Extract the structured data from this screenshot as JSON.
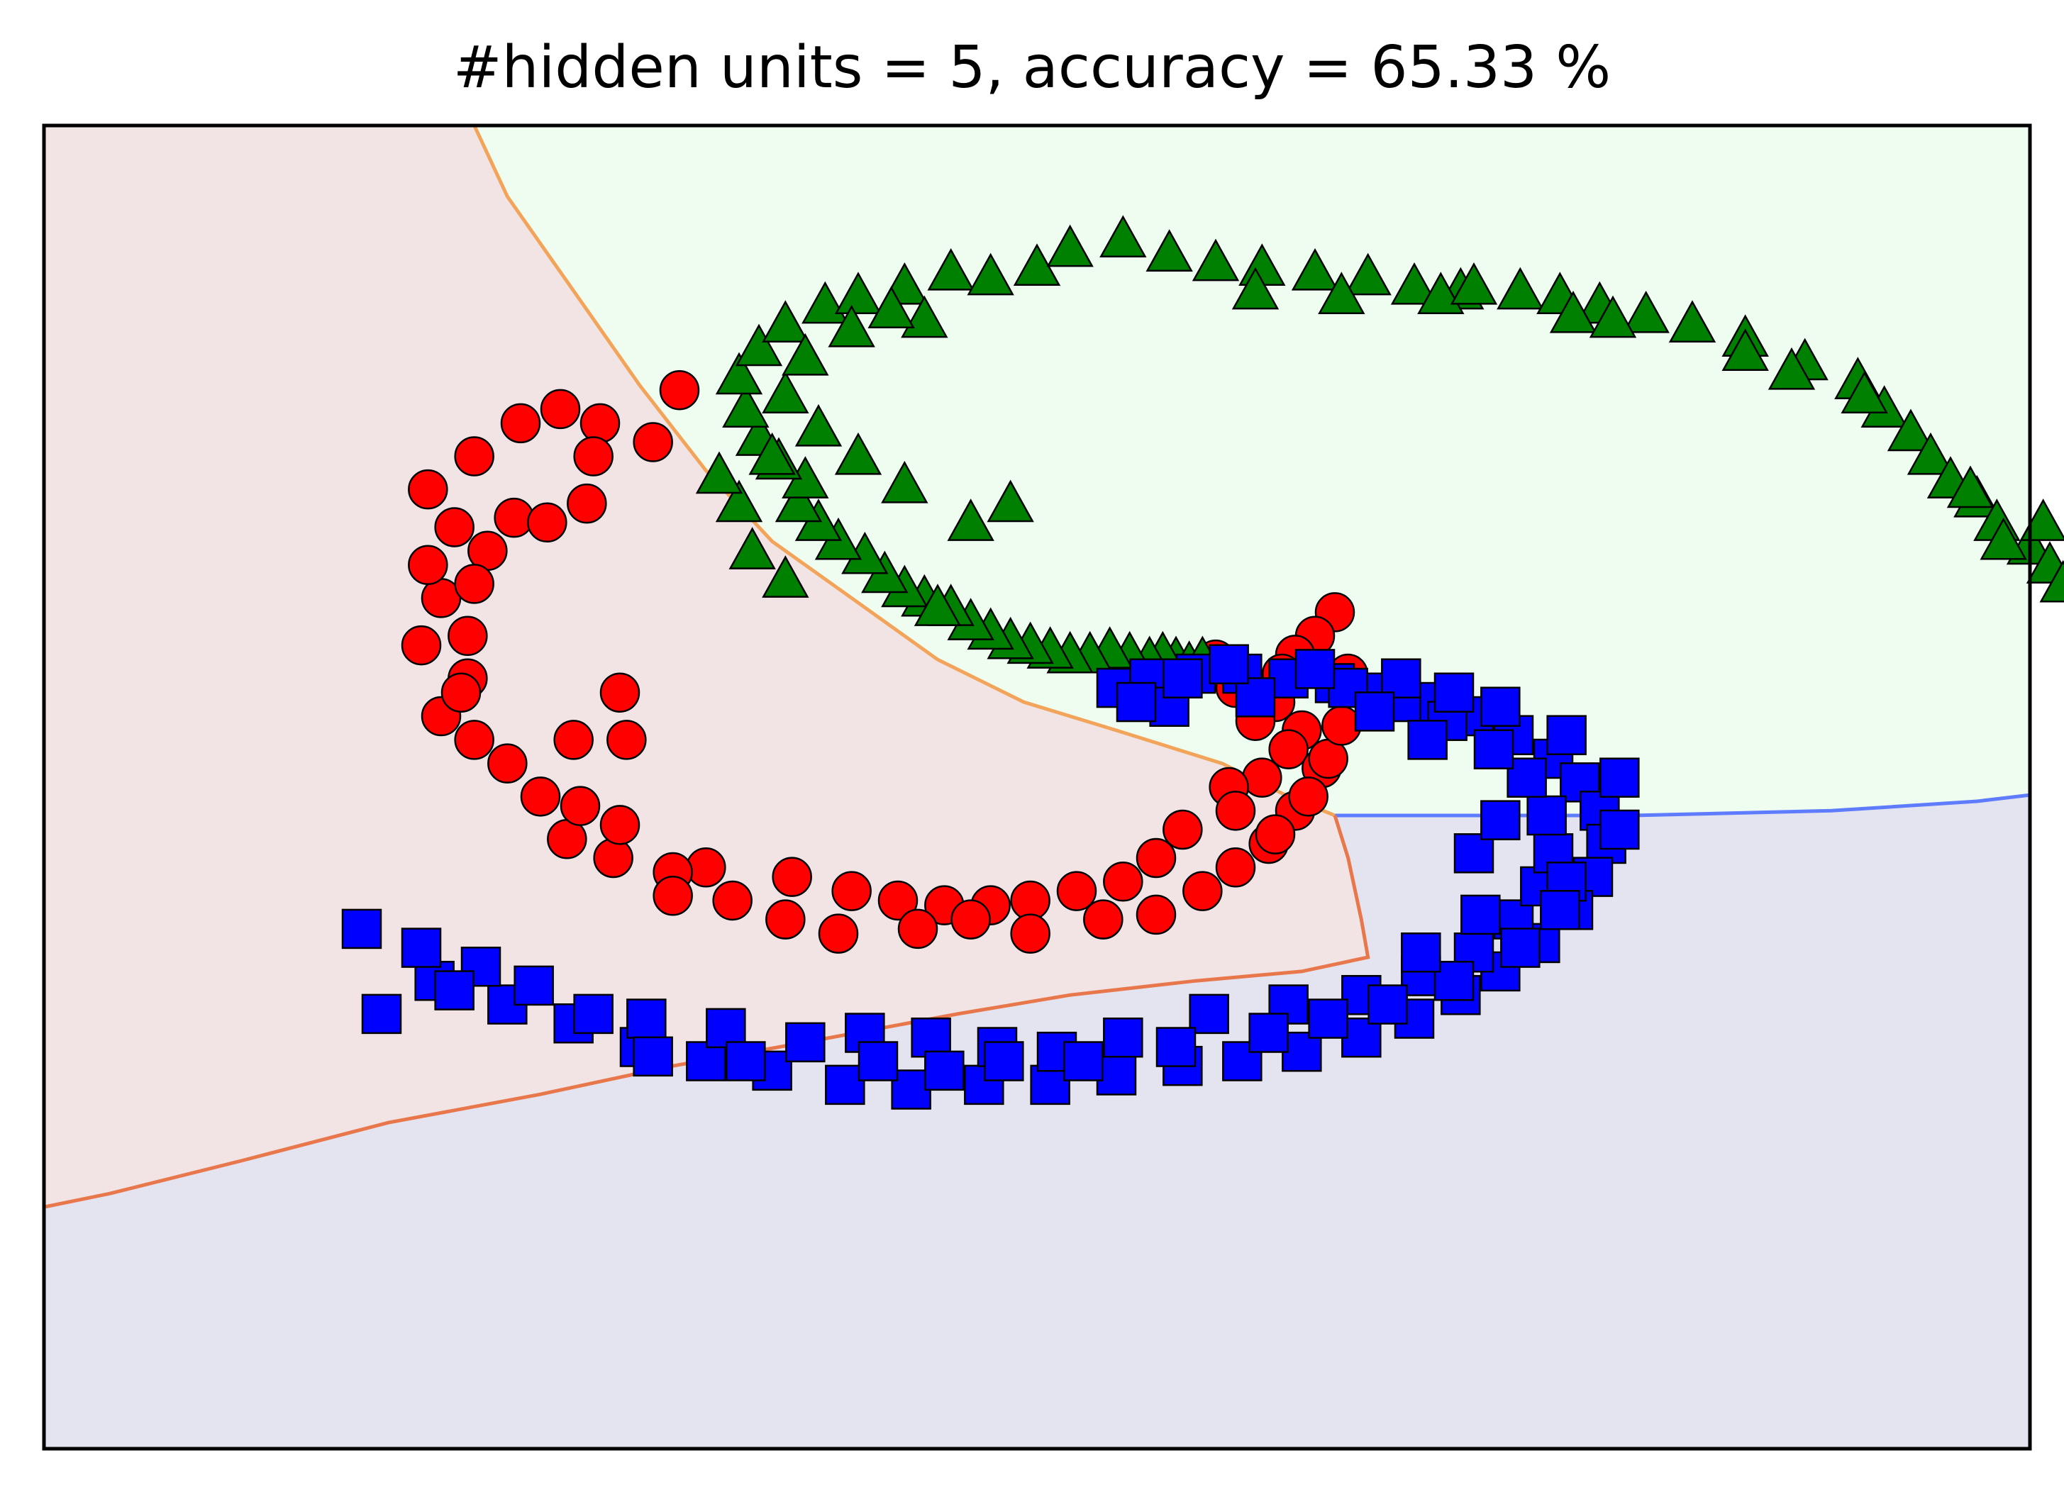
{
  "chart_data": {
    "type": "scatter",
    "title": "#hidden units = 5, accuracy = 65.33 %",
    "xlabel": "",
    "ylabel": "",
    "xlim": [
      -1.5,
      1.5
    ],
    "ylim": [
      -1.4,
      1.4
    ],
    "grid": false,
    "axis_ticks": false,
    "legend": "none",
    "region_colors": {
      "red": "#f2e4e4",
      "green": "#eefdf0",
      "blue": "#e4e4f1"
    },
    "series": [
      {
        "color": "#ff0000",
        "marker": "circle",
        "points": [
          [
            0.45,
            0.37
          ],
          [
            0.42,
            0.32
          ],
          [
            0.39,
            0.28
          ],
          [
            0.37,
            0.24
          ],
          [
            0.36,
            0.18
          ],
          [
            0.4,
            0.12
          ],
          [
            0.38,
            0.08
          ],
          [
            0.43,
            0.04
          ],
          [
            0.34,
            0.02
          ],
          [
            0.29,
            0.0
          ],
          [
            0.3,
            -0.05
          ],
          [
            0.39,
            -0.05
          ],
          [
            0.22,
            -0.09
          ],
          [
            0.35,
            -0.12
          ],
          [
            0.18,
            -0.15
          ],
          [
            0.13,
            -0.2
          ],
          [
            0.06,
            -0.22
          ],
          [
            -0.01,
            -0.24
          ],
          [
            -0.07,
            -0.25
          ],
          [
            -0.14,
            -0.25
          ],
          [
            -0.21,
            -0.24
          ],
          [
            -0.28,
            -0.22
          ],
          [
            -0.37,
            -0.19
          ],
          [
            -0.5,
            -0.17
          ],
          [
            -0.55,
            -0.18
          ],
          [
            -0.64,
            -0.15
          ],
          [
            -0.71,
            -0.11
          ],
          [
            -0.75,
            -0.02
          ],
          [
            -0.8,
            0.05
          ],
          [
            -0.85,
            0.1
          ],
          [
            -0.9,
            0.15
          ],
          [
            -0.86,
            0.23
          ],
          [
            -0.93,
            0.3
          ],
          [
            -0.9,
            0.4
          ],
          [
            -0.92,
            0.47
          ],
          [
            -0.88,
            0.55
          ],
          [
            -0.92,
            0.63
          ],
          [
            -0.85,
            0.7
          ],
          [
            -0.78,
            0.77
          ],
          [
            -0.72,
            0.8
          ],
          [
            -0.66,
            0.77
          ],
          [
            -0.58,
            0.73
          ],
          [
            -0.68,
            0.6
          ],
          [
            -0.79,
            0.57
          ],
          [
            -0.86,
            0.32
          ],
          [
            -0.63,
            0.2
          ],
          [
            -0.69,
            -0.04
          ],
          [
            -0.63,
            -0.08
          ],
          [
            -0.55,
            -0.23
          ],
          [
            -0.46,
            -0.24
          ],
          [
            -0.38,
            -0.28
          ],
          [
            -0.3,
            -0.31
          ],
          [
            -0.18,
            -0.3
          ],
          [
            -0.1,
            -0.28
          ],
          [
            -0.01,
            -0.31
          ],
          [
            0.1,
            -0.28
          ],
          [
            0.18,
            -0.27
          ],
          [
            0.25,
            -0.22
          ],
          [
            0.3,
            -0.17
          ],
          [
            0.36,
            -0.1
          ],
          [
            0.41,
            -0.02
          ],
          [
            0.44,
            0.06
          ],
          [
            0.46,
            0.13
          ],
          [
            -0.62,
            0.1
          ],
          [
            0.33,
            0.14
          ],
          [
            0.3,
            0.21
          ],
          [
            0.27,
            0.27
          ],
          [
            0.47,
            0.24
          ],
          [
            -0.54,
            0.84
          ],
          [
            -0.67,
            0.7
          ],
          [
            -0.74,
            0.56
          ],
          [
            -0.83,
            0.5
          ],
          [
            -0.85,
            0.43
          ],
          [
            -0.87,
            0.2
          ],
          [
            -0.7,
            0.1
          ]
        ]
      },
      {
        "color": "#008000",
        "marker": "triangle",
        "points": [
          [
            0.21,
            0.27
          ],
          [
            0.23,
            0.26
          ],
          [
            0.25,
            0.27
          ],
          [
            0.19,
            0.28
          ],
          [
            0.17,
            0.27
          ],
          [
            0.14,
            0.28
          ],
          [
            0.11,
            0.29
          ],
          [
            0.08,
            0.28
          ],
          [
            0.05,
            0.28
          ],
          [
            0.02,
            0.29
          ],
          [
            -0.01,
            0.3
          ],
          [
            -0.04,
            0.31
          ],
          [
            -0.07,
            0.33
          ],
          [
            -0.1,
            0.35
          ],
          [
            -0.13,
            0.38
          ],
          [
            -0.17,
            0.4
          ],
          [
            -0.2,
            0.42
          ],
          [
            -0.23,
            0.45
          ],
          [
            -0.26,
            0.49
          ],
          [
            -0.3,
            0.52
          ],
          [
            -0.33,
            0.56
          ],
          [
            -0.36,
            0.6
          ],
          [
            -0.35,
            0.65
          ],
          [
            -0.39,
            0.69
          ],
          [
            -0.42,
            0.74
          ],
          [
            -0.44,
            0.8
          ],
          [
            -0.45,
            0.87
          ],
          [
            -0.42,
            0.93
          ],
          [
            -0.38,
            0.98
          ],
          [
            -0.32,
            1.02
          ],
          [
            -0.27,
            1.04
          ],
          [
            -0.2,
            1.06
          ],
          [
            -0.13,
            1.09
          ],
          [
            -0.07,
            1.08
          ],
          [
            0.0,
            1.1
          ],
          [
            0.05,
            1.14
          ],
          [
            0.13,
            1.16
          ],
          [
            0.2,
            1.13
          ],
          [
            0.27,
            1.11
          ],
          [
            0.34,
            1.1
          ],
          [
            0.42,
            1.09
          ],
          [
            0.5,
            1.08
          ],
          [
            0.57,
            1.06
          ],
          [
            0.64,
            1.05
          ],
          [
            0.73,
            1.05
          ],
          [
            0.79,
            1.04
          ],
          [
            0.85,
            1.02
          ],
          [
            0.92,
            1.0
          ],
          [
            0.99,
            0.98
          ],
          [
            1.07,
            0.95
          ],
          [
            1.16,
            0.9
          ],
          [
            1.24,
            0.86
          ],
          [
            1.28,
            0.8
          ],
          [
            1.32,
            0.75
          ],
          [
            1.35,
            0.7
          ],
          [
            1.38,
            0.65
          ],
          [
            1.42,
            0.61
          ],
          [
            1.45,
            0.56
          ],
          [
            1.5,
            0.51
          ],
          [
            1.53,
            0.47
          ],
          [
            1.55,
            0.43
          ],
          [
            -0.1,
            0.56
          ],
          [
            -0.04,
            0.6
          ],
          [
            -0.2,
            0.64
          ],
          [
            -0.27,
            0.7
          ],
          [
            -0.33,
            0.76
          ],
          [
            -0.38,
            0.83
          ],
          [
            -0.35,
            0.91
          ],
          [
            -0.28,
            0.97
          ],
          [
            -0.17,
            0.99
          ],
          [
            -0.22,
            1.01
          ],
          [
            -0.4,
            0.7
          ],
          [
            -0.43,
            0.5
          ],
          [
            -0.38,
            0.44
          ],
          [
            0.33,
            1.05
          ],
          [
            0.46,
            1.04
          ],
          [
            0.61,
            1.04
          ],
          [
            0.66,
            1.06
          ],
          [
            0.81,
            1.0
          ],
          [
            0.87,
            0.99
          ],
          [
            1.07,
            0.92
          ],
          [
            1.14,
            0.88
          ],
          [
            1.25,
            0.83
          ],
          [
            1.41,
            0.63
          ],
          [
            1.46,
            0.52
          ],
          [
            1.52,
            0.56
          ],
          [
            -0.45,
            0.6
          ],
          [
            -0.48,
            0.66
          ],
          [
            -0.15,
            0.38
          ]
        ]
      },
      {
        "color": "#0000ff",
        "marker": "square",
        "points": [
          [
            0.12,
            0.21
          ],
          [
            0.17,
            0.23
          ],
          [
            0.24,
            0.24
          ],
          [
            0.31,
            0.24
          ],
          [
            0.38,
            0.23
          ],
          [
            0.45,
            0.22
          ],
          [
            0.52,
            0.2
          ],
          [
            0.59,
            0.18
          ],
          [
            0.66,
            0.15
          ],
          [
            0.72,
            0.11
          ],
          [
            0.78,
            0.06
          ],
          [
            0.82,
            0.01
          ],
          [
            0.85,
            -0.05
          ],
          [
            0.86,
            -0.12
          ],
          [
            0.84,
            -0.19
          ],
          [
            0.81,
            -0.26
          ],
          [
            0.76,
            -0.33
          ],
          [
            0.7,
            -0.39
          ],
          [
            0.64,
            -0.44
          ],
          [
            0.57,
            -0.49
          ],
          [
            0.49,
            -0.53
          ],
          [
            0.4,
            -0.56
          ],
          [
            0.31,
            -0.58
          ],
          [
            0.22,
            -0.59
          ],
          [
            0.12,
            -0.61
          ],
          [
            0.02,
            -0.63
          ],
          [
            -0.08,
            -0.63
          ],
          [
            -0.19,
            -0.64
          ],
          [
            -0.29,
            -0.63
          ],
          [
            -0.4,
            -0.6
          ],
          [
            -0.5,
            -0.58
          ],
          [
            -0.6,
            -0.55
          ],
          [
            -0.7,
            -0.5
          ],
          [
            -0.8,
            -0.46
          ],
          [
            -0.91,
            -0.41
          ],
          [
            -1.02,
            -0.3
          ],
          [
            -0.84,
            -0.38
          ],
          [
            -0.76,
            -0.42
          ],
          [
            -0.59,
            -0.49
          ],
          [
            -0.47,
            -0.51
          ],
          [
            -0.35,
            -0.54
          ],
          [
            -0.26,
            -0.52
          ],
          [
            -0.16,
            -0.53
          ],
          [
            -0.06,
            -0.55
          ],
          [
            0.03,
            -0.56
          ],
          [
            0.13,
            -0.53
          ],
          [
            0.26,
            -0.48
          ],
          [
            0.38,
            -0.46
          ],
          [
            0.49,
            -0.44
          ],
          [
            0.58,
            -0.4
          ],
          [
            0.66,
            -0.35
          ],
          [
            0.72,
            -0.28
          ],
          [
            0.76,
            -0.21
          ],
          [
            0.78,
            -0.14
          ],
          [
            0.77,
            -0.06
          ],
          [
            0.74,
            0.02
          ],
          [
            0.69,
            0.08
          ],
          [
            0.62,
            0.14
          ],
          [
            0.55,
            0.18
          ],
          [
            0.47,
            0.21
          ],
          [
            0.33,
            0.19
          ],
          [
            0.2,
            0.17
          ],
          [
            0.15,
            0.18
          ],
          [
            0.29,
            0.26
          ],
          [
            0.42,
            0.25
          ],
          [
            0.55,
            0.23
          ],
          [
            0.63,
            0.2
          ],
          [
            0.7,
            0.17
          ],
          [
            0.8,
            0.11
          ],
          [
            0.88,
            0.02
          ],
          [
            0.88,
            -0.09
          ],
          [
            0.8,
            -0.2
          ],
          [
            0.73,
            -0.34
          ],
          [
            0.63,
            -0.41
          ],
          [
            0.53,
            -0.46
          ],
          [
            0.44,
            -0.49
          ],
          [
            0.21,
            -0.55
          ],
          [
            -0.05,
            -0.58
          ],
          [
            -0.24,
            -0.58
          ],
          [
            -0.44,
            -0.58
          ],
          [
            -0.58,
            -0.57
          ],
          [
            -0.67,
            -0.48
          ],
          [
            -0.88,
            -0.43
          ],
          [
            -0.14,
            -0.6
          ],
          [
            0.07,
            -0.58
          ],
          [
            0.35,
            -0.52
          ],
          [
            0.58,
            -0.35
          ],
          [
            0.67,
            -0.27
          ],
          [
            0.66,
            -0.14
          ],
          [
            0.7,
            -0.07
          ],
          [
            0.79,
            -0.26
          ],
          [
            0.59,
            0.1
          ],
          [
            0.51,
            0.16
          ],
          [
            0.22,
            0.23
          ],
          [
            -0.99,
            -0.48
          ],
          [
            -0.93,
            -0.34
          ]
        ]
      }
    ]
  }
}
